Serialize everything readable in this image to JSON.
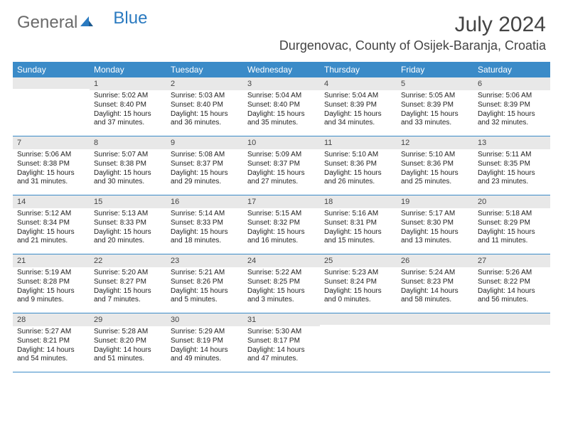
{
  "brand": {
    "part1": "General",
    "part2": "Blue"
  },
  "title": "July 2024",
  "location": "Durgenovac, County of Osijek-Baranja, Croatia",
  "colors": {
    "header_bg": "#3b8bc8",
    "header_fg": "#ffffff",
    "daynum_bg": "#e8e8e8",
    "row_border": "#3b8bc8",
    "brand_blue": "#2a7ac0",
    "text": "#222222"
  },
  "dayHeaders": [
    "Sunday",
    "Monday",
    "Tuesday",
    "Wednesday",
    "Thursday",
    "Friday",
    "Saturday"
  ],
  "weeks": [
    [
      {
        "num": "",
        "lines": [
          "",
          "",
          "",
          ""
        ]
      },
      {
        "num": "1",
        "lines": [
          "Sunrise: 5:02 AM",
          "Sunset: 8:40 PM",
          "Daylight: 15 hours",
          "and 37 minutes."
        ]
      },
      {
        "num": "2",
        "lines": [
          "Sunrise: 5:03 AM",
          "Sunset: 8:40 PM",
          "Daylight: 15 hours",
          "and 36 minutes."
        ]
      },
      {
        "num": "3",
        "lines": [
          "Sunrise: 5:04 AM",
          "Sunset: 8:40 PM",
          "Daylight: 15 hours",
          "and 35 minutes."
        ]
      },
      {
        "num": "4",
        "lines": [
          "Sunrise: 5:04 AM",
          "Sunset: 8:39 PM",
          "Daylight: 15 hours",
          "and 34 minutes."
        ]
      },
      {
        "num": "5",
        "lines": [
          "Sunrise: 5:05 AM",
          "Sunset: 8:39 PM",
          "Daylight: 15 hours",
          "and 33 minutes."
        ]
      },
      {
        "num": "6",
        "lines": [
          "Sunrise: 5:06 AM",
          "Sunset: 8:39 PM",
          "Daylight: 15 hours",
          "and 32 minutes."
        ]
      }
    ],
    [
      {
        "num": "7",
        "lines": [
          "Sunrise: 5:06 AM",
          "Sunset: 8:38 PM",
          "Daylight: 15 hours",
          "and 31 minutes."
        ]
      },
      {
        "num": "8",
        "lines": [
          "Sunrise: 5:07 AM",
          "Sunset: 8:38 PM",
          "Daylight: 15 hours",
          "and 30 minutes."
        ]
      },
      {
        "num": "9",
        "lines": [
          "Sunrise: 5:08 AM",
          "Sunset: 8:37 PM",
          "Daylight: 15 hours",
          "and 29 minutes."
        ]
      },
      {
        "num": "10",
        "lines": [
          "Sunrise: 5:09 AM",
          "Sunset: 8:37 PM",
          "Daylight: 15 hours",
          "and 27 minutes."
        ]
      },
      {
        "num": "11",
        "lines": [
          "Sunrise: 5:10 AM",
          "Sunset: 8:36 PM",
          "Daylight: 15 hours",
          "and 26 minutes."
        ]
      },
      {
        "num": "12",
        "lines": [
          "Sunrise: 5:10 AM",
          "Sunset: 8:36 PM",
          "Daylight: 15 hours",
          "and 25 minutes."
        ]
      },
      {
        "num": "13",
        "lines": [
          "Sunrise: 5:11 AM",
          "Sunset: 8:35 PM",
          "Daylight: 15 hours",
          "and 23 minutes."
        ]
      }
    ],
    [
      {
        "num": "14",
        "lines": [
          "Sunrise: 5:12 AM",
          "Sunset: 8:34 PM",
          "Daylight: 15 hours",
          "and 21 minutes."
        ]
      },
      {
        "num": "15",
        "lines": [
          "Sunrise: 5:13 AM",
          "Sunset: 8:33 PM",
          "Daylight: 15 hours",
          "and 20 minutes."
        ]
      },
      {
        "num": "16",
        "lines": [
          "Sunrise: 5:14 AM",
          "Sunset: 8:33 PM",
          "Daylight: 15 hours",
          "and 18 minutes."
        ]
      },
      {
        "num": "17",
        "lines": [
          "Sunrise: 5:15 AM",
          "Sunset: 8:32 PM",
          "Daylight: 15 hours",
          "and 16 minutes."
        ]
      },
      {
        "num": "18",
        "lines": [
          "Sunrise: 5:16 AM",
          "Sunset: 8:31 PM",
          "Daylight: 15 hours",
          "and 15 minutes."
        ]
      },
      {
        "num": "19",
        "lines": [
          "Sunrise: 5:17 AM",
          "Sunset: 8:30 PM",
          "Daylight: 15 hours",
          "and 13 minutes."
        ]
      },
      {
        "num": "20",
        "lines": [
          "Sunrise: 5:18 AM",
          "Sunset: 8:29 PM",
          "Daylight: 15 hours",
          "and 11 minutes."
        ]
      }
    ],
    [
      {
        "num": "21",
        "lines": [
          "Sunrise: 5:19 AM",
          "Sunset: 8:28 PM",
          "Daylight: 15 hours",
          "and 9 minutes."
        ]
      },
      {
        "num": "22",
        "lines": [
          "Sunrise: 5:20 AM",
          "Sunset: 8:27 PM",
          "Daylight: 15 hours",
          "and 7 minutes."
        ]
      },
      {
        "num": "23",
        "lines": [
          "Sunrise: 5:21 AM",
          "Sunset: 8:26 PM",
          "Daylight: 15 hours",
          "and 5 minutes."
        ]
      },
      {
        "num": "24",
        "lines": [
          "Sunrise: 5:22 AM",
          "Sunset: 8:25 PM",
          "Daylight: 15 hours",
          "and 3 minutes."
        ]
      },
      {
        "num": "25",
        "lines": [
          "Sunrise: 5:23 AM",
          "Sunset: 8:24 PM",
          "Daylight: 15 hours",
          "and 0 minutes."
        ]
      },
      {
        "num": "26",
        "lines": [
          "Sunrise: 5:24 AM",
          "Sunset: 8:23 PM",
          "Daylight: 14 hours",
          "and 58 minutes."
        ]
      },
      {
        "num": "27",
        "lines": [
          "Sunrise: 5:26 AM",
          "Sunset: 8:22 PM",
          "Daylight: 14 hours",
          "and 56 minutes."
        ]
      }
    ],
    [
      {
        "num": "28",
        "lines": [
          "Sunrise: 5:27 AM",
          "Sunset: 8:21 PM",
          "Daylight: 14 hours",
          "and 54 minutes."
        ]
      },
      {
        "num": "29",
        "lines": [
          "Sunrise: 5:28 AM",
          "Sunset: 8:20 PM",
          "Daylight: 14 hours",
          "and 51 minutes."
        ]
      },
      {
        "num": "30",
        "lines": [
          "Sunrise: 5:29 AM",
          "Sunset: 8:19 PM",
          "Daylight: 14 hours",
          "and 49 minutes."
        ]
      },
      {
        "num": "31",
        "lines": [
          "Sunrise: 5:30 AM",
          "Sunset: 8:17 PM",
          "Daylight: 14 hours",
          "and 47 minutes."
        ]
      },
      {
        "num": "",
        "lines": [
          "",
          "",
          "",
          ""
        ]
      },
      {
        "num": "",
        "lines": [
          "",
          "",
          "",
          ""
        ]
      },
      {
        "num": "",
        "lines": [
          "",
          "",
          "",
          ""
        ]
      }
    ]
  ]
}
